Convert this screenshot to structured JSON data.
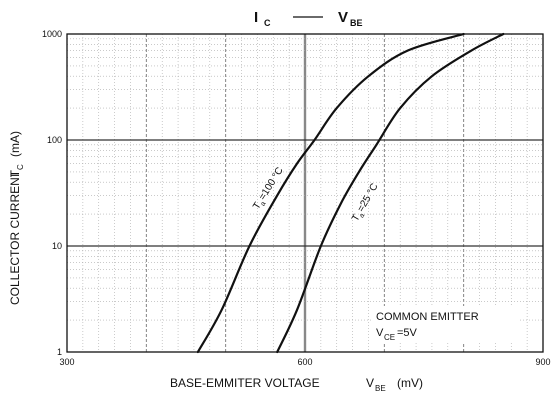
{
  "chart_data": {
    "type": "line",
    "title": {
      "main_left": "I",
      "main_left_sub": "C",
      "dash": "——",
      "main_right": "V",
      "main_right_sub": "BE"
    },
    "xlabel": {
      "text": "BASE-EMMITER VOLTAGE",
      "symbol": "V",
      "symbol_sub": "BE",
      "unit": "(mV)"
    },
    "ylabel": {
      "text": "COLLECTOR CURRENT",
      "symbol": "I",
      "symbol_sub": "C",
      "unit": "(mA)"
    },
    "xlim": [
      300,
      900
    ],
    "ylim": [
      1,
      1000
    ],
    "y_scale": "log",
    "x_ticks": [
      "300",
      "600",
      "900"
    ],
    "x_tick_values": [
      300,
      600,
      900
    ],
    "y_ticks": [
      "1",
      "10",
      "100",
      "1000"
    ],
    "y_tick_values": [
      1,
      10,
      100,
      1000
    ],
    "grid": true,
    "series": [
      {
        "name": "Ta=100°C",
        "label_main": "T",
        "label_sub": "a",
        "label_rest": "=100 °C",
        "x": [
          465,
          495,
          530,
          565,
          590,
          612,
          640,
          680,
          730,
          800
        ],
        "y": [
          1,
          2.5,
          10,
          30,
          60,
          100,
          200,
          400,
          700,
          1000
        ]
      },
      {
        "name": "Ta=25°C",
        "label_main": "T",
        "label_sub": "a",
        "label_rest": "=25 °C",
        "x": [
          565,
          590,
          620,
          645,
          668,
          690,
          720,
          760,
          810,
          850
        ],
        "y": [
          1,
          2.5,
          10,
          25,
          50,
          90,
          200,
          400,
          700,
          1000
        ]
      }
    ],
    "annotation": {
      "line1": "COMMON EMITTER",
      "line2_symbol": "V",
      "line2_sub": "CE",
      "line2_rest": "=5V"
    }
  }
}
